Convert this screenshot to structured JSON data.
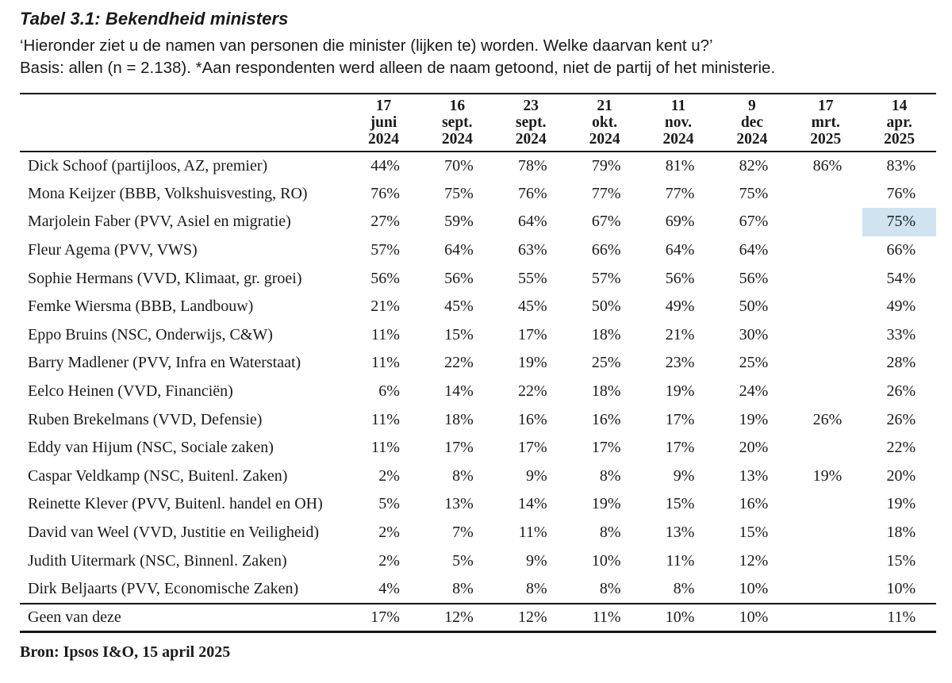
{
  "document": {
    "title": "Tabel 3.1: Bekendheid ministers",
    "question": "‘Hieronder ziet u de namen van personen die minister (lijken te) worden. Welke daarvan kent u?’",
    "basis": "Basis: allen (n = 2.138). *Aan respondenten werd alleen de naam getoond, niet de partij of het ministerie.",
    "source": "Bron: Ipsos I&O, 15 april 2025"
  },
  "table": {
    "columns": [
      [
        "17",
        "juni",
        "2024"
      ],
      [
        "16",
        "sept.",
        "2024"
      ],
      [
        "23",
        "sept.",
        "2024"
      ],
      [
        "21",
        "okt.",
        "2024"
      ],
      [
        "11",
        "nov.",
        "2024"
      ],
      [
        "9",
        "dec",
        "2024"
      ],
      [
        "17",
        "mrt.",
        "2025"
      ],
      [
        "14",
        "apr.",
        "2025"
      ]
    ],
    "rows": [
      {
        "label": "Dick Schoof (partijloos, AZ, premier)",
        "values": [
          "44%",
          "70%",
          "78%",
          "79%",
          "81%",
          "82%",
          "86%",
          "83%"
        ]
      },
      {
        "label": "Mona Keijzer (BBB, Volkshuisvesting, RO)",
        "values": [
          "76%",
          "75%",
          "76%",
          "77%",
          "77%",
          "75%",
          "",
          "76%"
        ]
      },
      {
        "label": "Marjolein Faber (PVV, Asiel en migratie)",
        "values": [
          "27%",
          "59%",
          "64%",
          "67%",
          "69%",
          "67%",
          "",
          "75%"
        ]
      },
      {
        "label": "Fleur Agema (PVV, VWS)",
        "values": [
          "57%",
          "64%",
          "63%",
          "66%",
          "64%",
          "64%",
          "",
          "66%"
        ]
      },
      {
        "label": "Sophie Hermans (VVD, Klimaat, gr. groei)",
        "values": [
          "56%",
          "56%",
          "55%",
          "57%",
          "56%",
          "56%",
          "",
          "54%"
        ]
      },
      {
        "label": "Femke Wiersma (BBB, Landbouw)",
        "values": [
          "21%",
          "45%",
          "45%",
          "50%",
          "49%",
          "50%",
          "",
          "49%"
        ]
      },
      {
        "label": "Eppo Bruins (NSC, Onderwijs, C&W)",
        "values": [
          "11%",
          "15%",
          "17%",
          "18%",
          "21%",
          "30%",
          "",
          "33%"
        ]
      },
      {
        "label": "Barry Madlener (PVV, Infra en Waterstaat)",
        "values": [
          "11%",
          "22%",
          "19%",
          "25%",
          "23%",
          "25%",
          "",
          "28%"
        ]
      },
      {
        "label": "Eelco Heinen (VVD, Financiën)",
        "values": [
          "6%",
          "14%",
          "22%",
          "18%",
          "19%",
          "24%",
          "",
          "26%"
        ]
      },
      {
        "label": "Ruben Brekelmans (VVD, Defensie)",
        "values": [
          "11%",
          "18%",
          "16%",
          "16%",
          "17%",
          "19%",
          "26%",
          "26%"
        ]
      },
      {
        "label": "Eddy van Hijum (NSC, Sociale zaken)",
        "values": [
          "11%",
          "17%",
          "17%",
          "17%",
          "17%",
          "20%",
          "",
          "22%"
        ]
      },
      {
        "label": "Caspar Veldkamp (NSC, Buitenl. Zaken)",
        "values": [
          "2%",
          "8%",
          "9%",
          "8%",
          "9%",
          "13%",
          "19%",
          "20%"
        ]
      },
      {
        "label": "Reinette Klever (PVV, Buitenl. handel en OH)",
        "values": [
          "5%",
          "13%",
          "14%",
          "19%",
          "15%",
          "16%",
          "",
          "19%"
        ]
      },
      {
        "label": "David van Weel (VVD, Justitie en Veiligheid)",
        "values": [
          "2%",
          "7%",
          "11%",
          "8%",
          "13%",
          "15%",
          "",
          "18%"
        ]
      },
      {
        "label": "Judith Uitermark (NSC, Binnenl. Zaken)",
        "values": [
          "2%",
          "5%",
          "9%",
          "10%",
          "11%",
          "12%",
          "",
          "15%"
        ]
      },
      {
        "label": "Dirk Beljaarts (PVV, Economische Zaken)",
        "values": [
          "4%",
          "8%",
          "8%",
          "8%",
          "8%",
          "10%",
          "",
          "10%"
        ]
      }
    ],
    "footer_row": {
      "label": "Geen van deze",
      "values": [
        "17%",
        "12%",
        "12%",
        "11%",
        "10%",
        "10%",
        "",
        "11%"
      ]
    },
    "highlight": {
      "row": 2,
      "col": 7,
      "color": "#cfe3f0"
    }
  }
}
